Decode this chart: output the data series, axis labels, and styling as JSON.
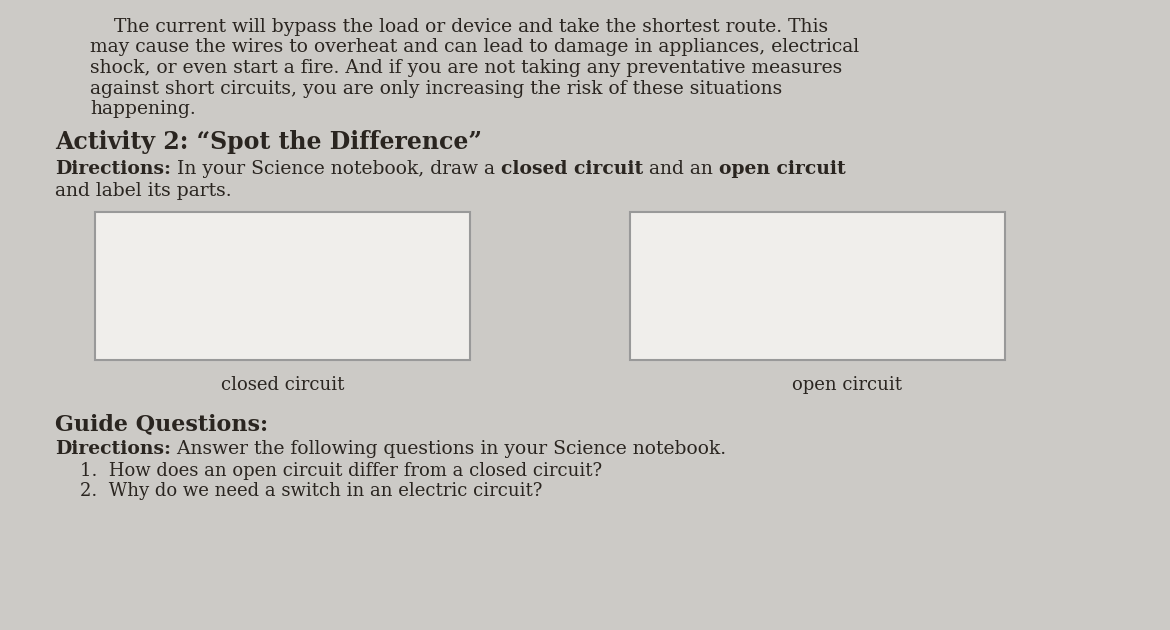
{
  "bg_color": "#cccac6",
  "text_color": "#2a2520",
  "paragraph_lines": [
    "    The current will bypass the load or device and take the shortest route. This",
    "may cause the wires to overheat and can lead to damage in appliances, electrical",
    "shock, or even start a fire. And if you are not taking any preventative measures",
    "against short circuits, you are only increasing the risk of these situations",
    "happening."
  ],
  "activity_title": "Activity 2: “Spot the Difference”",
  "box1_label": "closed circuit",
  "box2_label": "open circuit",
  "guide_title": "Guide Questions:",
  "directions2_normal": " Answer the following questions in your Science notebook.",
  "q1": "1.  How does an open circuit differ from a closed circuit?",
  "q2": "2.  Why do we need a switch in an electric circuit?",
  "box_color": "#f0eeeb",
  "box_border": "#999999",
  "font_size_para": 13.5,
  "font_size_activity": 17,
  "font_size_directions": 13.5,
  "font_size_label": 13,
  "font_size_guide": 16,
  "font_size_q": 13
}
